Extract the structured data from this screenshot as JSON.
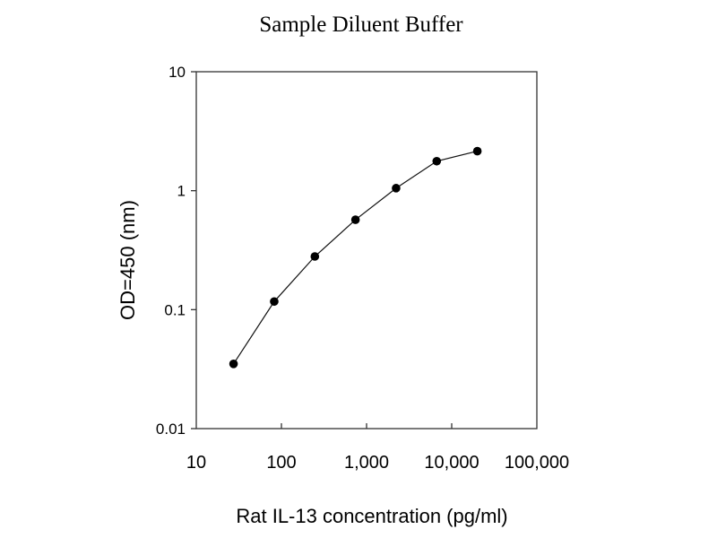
{
  "chart_data": {
    "type": "line",
    "title": "Sample Diluent Buffer",
    "xlabel": "Rat IL-13 concentration (pg/ml)",
    "ylabel": "OD=450 (nm)",
    "xscale": "log",
    "yscale": "log",
    "xlim": [
      10,
      100000
    ],
    "ylim": [
      0.01,
      10
    ],
    "xticks": [
      10,
      100,
      1000,
      10000,
      100000
    ],
    "xtick_labels": [
      "10",
      "100",
      "1,000",
      "10,000",
      "100,000"
    ],
    "yticks": [
      0.01,
      0.1,
      1,
      10
    ],
    "ytick_labels": [
      "0.01",
      "0.1",
      "1",
      "10"
    ],
    "grid": false,
    "series": [
      {
        "name": "Sample Diluent Buffer",
        "marker": "circle",
        "color": "#000000",
        "x": [
          27.4,
          82.3,
          247,
          741,
          2222,
          6667,
          20000
        ],
        "y": [
          0.035,
          0.117,
          0.28,
          0.57,
          1.05,
          1.77,
          2.15
        ]
      }
    ]
  }
}
